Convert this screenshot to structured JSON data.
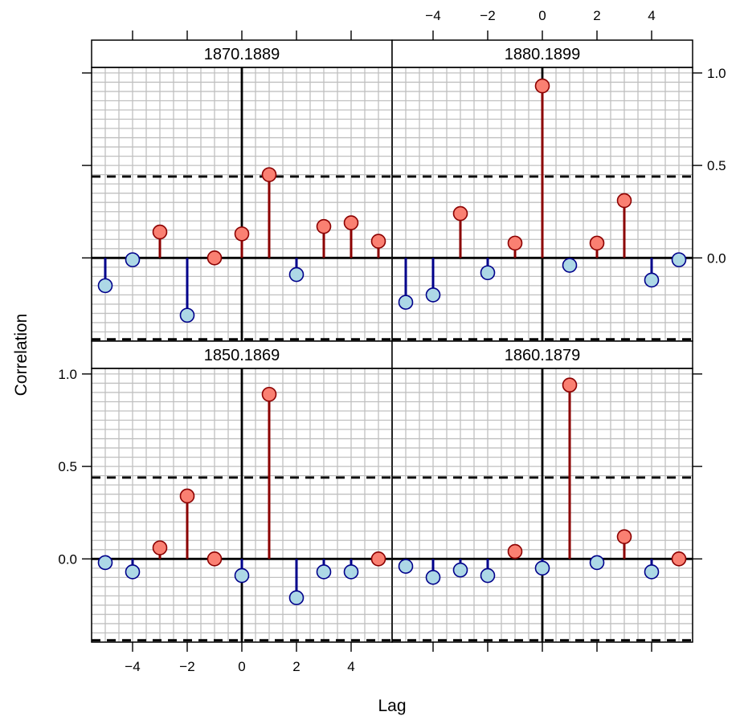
{
  "chart_data": {
    "type": "lag-correlation-panels",
    "xlabel": "Lag",
    "ylabel": "Correlation",
    "xlim": [
      -5.5,
      5.5
    ],
    "ylim": [
      -0.45,
      1.03
    ],
    "x_ticks": [
      -4,
      -2,
      0,
      2,
      4
    ],
    "y_ticks": [
      0.0,
      0.5,
      1.0
    ],
    "y_tick_labels": [
      "0.0",
      "0.5",
      "1.0"
    ],
    "significance_band": [
      -0.44,
      0.44
    ],
    "grid": true,
    "layout": "2x2",
    "colors": {
      "positive_line": "#8b0000",
      "positive_fill": "#fa8072",
      "negative_line": "#00008b",
      "negative_fill": "#add8e6",
      "grid": "#c0c0c0",
      "frame": "#000000",
      "strip_bg": "#ffffff"
    },
    "panels": [
      {
        "title": "1870.1889",
        "position": "top-left",
        "lags": [
          -5,
          -4,
          -3,
          -2,
          -1,
          0,
          1,
          2,
          3,
          4,
          5
        ],
        "values": [
          -0.15,
          -0.01,
          0.14,
          -0.31,
          0.0,
          0.13,
          0.45,
          -0.09,
          0.17,
          0.19,
          0.09
        ]
      },
      {
        "title": "1880.1899",
        "position": "top-right",
        "lags": [
          -5,
          -4,
          -3,
          -2,
          -1,
          0,
          1,
          2,
          3,
          4,
          5
        ],
        "values": [
          -0.24,
          -0.2,
          0.24,
          -0.08,
          0.08,
          0.93,
          -0.04,
          0.08,
          0.31,
          -0.12,
          -0.01
        ]
      },
      {
        "title": "1850.1869",
        "position": "bottom-left",
        "lags": [
          -5,
          -4,
          -3,
          -2,
          -1,
          0,
          1,
          2,
          3,
          4,
          5
        ],
        "values": [
          -0.02,
          -0.07,
          0.06,
          0.34,
          0.0,
          -0.09,
          0.89,
          -0.21,
          -0.07,
          -0.07,
          0.0
        ]
      },
      {
        "title": "1860.1879",
        "position": "bottom-right",
        "lags": [
          -5,
          -4,
          -3,
          -2,
          -1,
          0,
          1,
          2,
          3,
          4,
          5
        ],
        "values": [
          -0.04,
          -0.1,
          -0.06,
          -0.09,
          0.04,
          -0.05,
          0.94,
          -0.02,
          0.12,
          -0.07,
          0.0
        ]
      }
    ]
  }
}
